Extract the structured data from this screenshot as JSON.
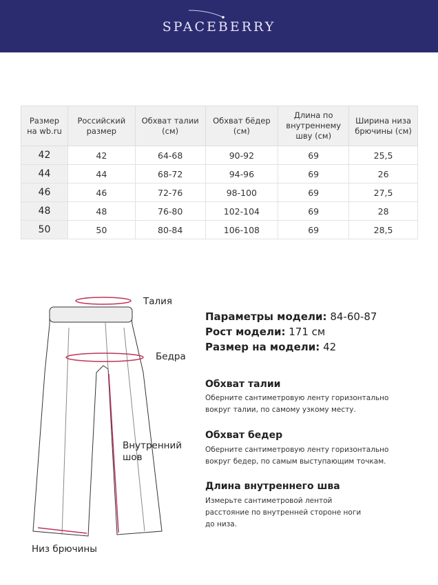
{
  "brand": {
    "name": "SPACEBERRY",
    "color": "#2b2b70"
  },
  "table": {
    "headers": [
      "Размер на wb.ru",
      "Российский размер",
      "Обхват талии (см)",
      "Обхват бёдер (см)",
      "Длина по внутреннему шву (см)",
      "Ширина низа брючины (см)"
    ],
    "rows": [
      [
        "42",
        "42",
        "64-68",
        "90-92",
        "69",
        "25,5"
      ],
      [
        "44",
        "44",
        "68-72",
        "94-96",
        "69",
        "26"
      ],
      [
        "46",
        "46",
        "72-76",
        "98-100",
        "69",
        "27,5"
      ],
      [
        "48",
        "48",
        "76-80",
        "102-104",
        "69",
        "28"
      ],
      [
        "50",
        "50",
        "80-84",
        "106-108",
        "69",
        "28,5"
      ]
    ]
  },
  "diagram": {
    "waist": "Талия",
    "hips": "Бедра",
    "inseam": "Внутренний шов",
    "hem": "Низ брючины",
    "accent": "#c0335a"
  },
  "model": {
    "params_label": "Параметры модели:",
    "params_value": "84-60-87",
    "height_label": "Рост модели:",
    "height_value": "171 см",
    "size_label": "Размер на модели:",
    "size_value": "42"
  },
  "instructions": [
    {
      "title": "Обхват талии",
      "desc": "Оберните сантиметровую ленту горизонтально вокруг талии, по самому узкому месту."
    },
    {
      "title": "Обхват бедер",
      "desc": "Оберните сантиметровую ленту горизонтально вокруг бедер, по самым выступающим точкам."
    },
    {
      "title": "Длина внутреннего шва",
      "desc": "Измерьте сантиметровой лентой расстояние по внутренней стороне ноги до низа."
    }
  ]
}
